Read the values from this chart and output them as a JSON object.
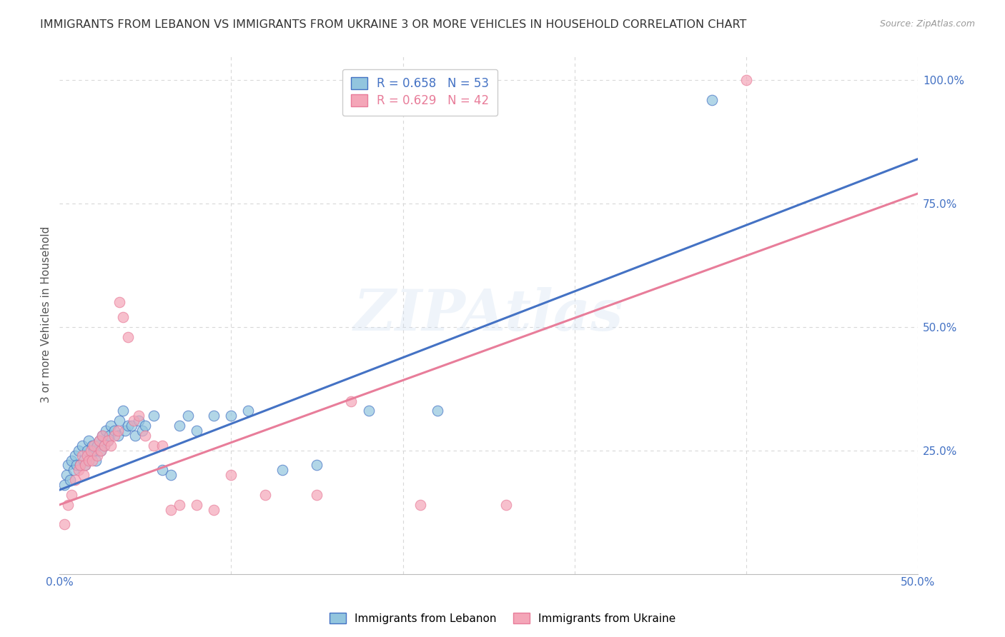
{
  "title": "IMMIGRANTS FROM LEBANON VS IMMIGRANTS FROM UKRAINE 3 OR MORE VEHICLES IN HOUSEHOLD CORRELATION CHART",
  "source": "Source: ZipAtlas.com",
  "ylabel": "3 or more Vehicles in Household",
  "xlim": [
    0.0,
    0.5
  ],
  "ylim": [
    0.0,
    1.05
  ],
  "R_lebanon": 0.658,
  "N_lebanon": 53,
  "R_ukraine": 0.629,
  "N_ukraine": 42,
  "color_lebanon": "#92C5DE",
  "color_ukraine": "#F4A6B8",
  "line_color_lebanon": "#4472C4",
  "line_color_ukraine": "#E87D9A",
  "watermark": "ZIPAtlas",
  "lebanon_x": [
    0.003,
    0.004,
    0.005,
    0.006,
    0.007,
    0.008,
    0.009,
    0.01,
    0.011,
    0.012,
    0.013,
    0.014,
    0.015,
    0.016,
    0.017,
    0.018,
    0.019,
    0.02,
    0.021,
    0.022,
    0.023,
    0.024,
    0.025,
    0.026,
    0.027,
    0.028,
    0.029,
    0.03,
    0.032,
    0.034,
    0.035,
    0.037,
    0.038,
    0.04,
    0.042,
    0.044,
    0.046,
    0.048,
    0.05,
    0.055,
    0.06,
    0.065,
    0.07,
    0.075,
    0.08,
    0.09,
    0.1,
    0.11,
    0.13,
    0.15,
    0.18,
    0.22,
    0.38
  ],
  "lebanon_y": [
    0.18,
    0.2,
    0.22,
    0.19,
    0.23,
    0.21,
    0.24,
    0.22,
    0.25,
    0.22,
    0.26,
    0.23,
    0.22,
    0.25,
    0.27,
    0.24,
    0.26,
    0.25,
    0.23,
    0.26,
    0.27,
    0.25,
    0.28,
    0.26,
    0.29,
    0.27,
    0.28,
    0.3,
    0.29,
    0.28,
    0.31,
    0.33,
    0.29,
    0.3,
    0.3,
    0.28,
    0.31,
    0.29,
    0.3,
    0.32,
    0.21,
    0.2,
    0.3,
    0.32,
    0.29,
    0.32,
    0.32,
    0.33,
    0.21,
    0.22,
    0.33,
    0.33,
    0.96
  ],
  "ukraine_x": [
    0.003,
    0.005,
    0.007,
    0.009,
    0.011,
    0.012,
    0.013,
    0.014,
    0.015,
    0.016,
    0.017,
    0.018,
    0.019,
    0.02,
    0.022,
    0.023,
    0.024,
    0.025,
    0.026,
    0.028,
    0.03,
    0.032,
    0.034,
    0.035,
    0.037,
    0.04,
    0.043,
    0.046,
    0.05,
    0.055,
    0.06,
    0.065,
    0.07,
    0.08,
    0.09,
    0.1,
    0.12,
    0.15,
    0.17,
    0.21,
    0.26,
    0.4
  ],
  "ukraine_y": [
    0.1,
    0.14,
    0.16,
    0.19,
    0.21,
    0.22,
    0.24,
    0.2,
    0.22,
    0.24,
    0.23,
    0.25,
    0.23,
    0.26,
    0.24,
    0.27,
    0.25,
    0.28,
    0.26,
    0.27,
    0.26,
    0.28,
    0.29,
    0.55,
    0.52,
    0.48,
    0.31,
    0.32,
    0.28,
    0.26,
    0.26,
    0.13,
    0.14,
    0.14,
    0.13,
    0.2,
    0.16,
    0.16,
    0.35,
    0.14,
    0.14,
    1.0
  ],
  "background_color": "#ffffff",
  "grid_color": "#d8d8d8"
}
